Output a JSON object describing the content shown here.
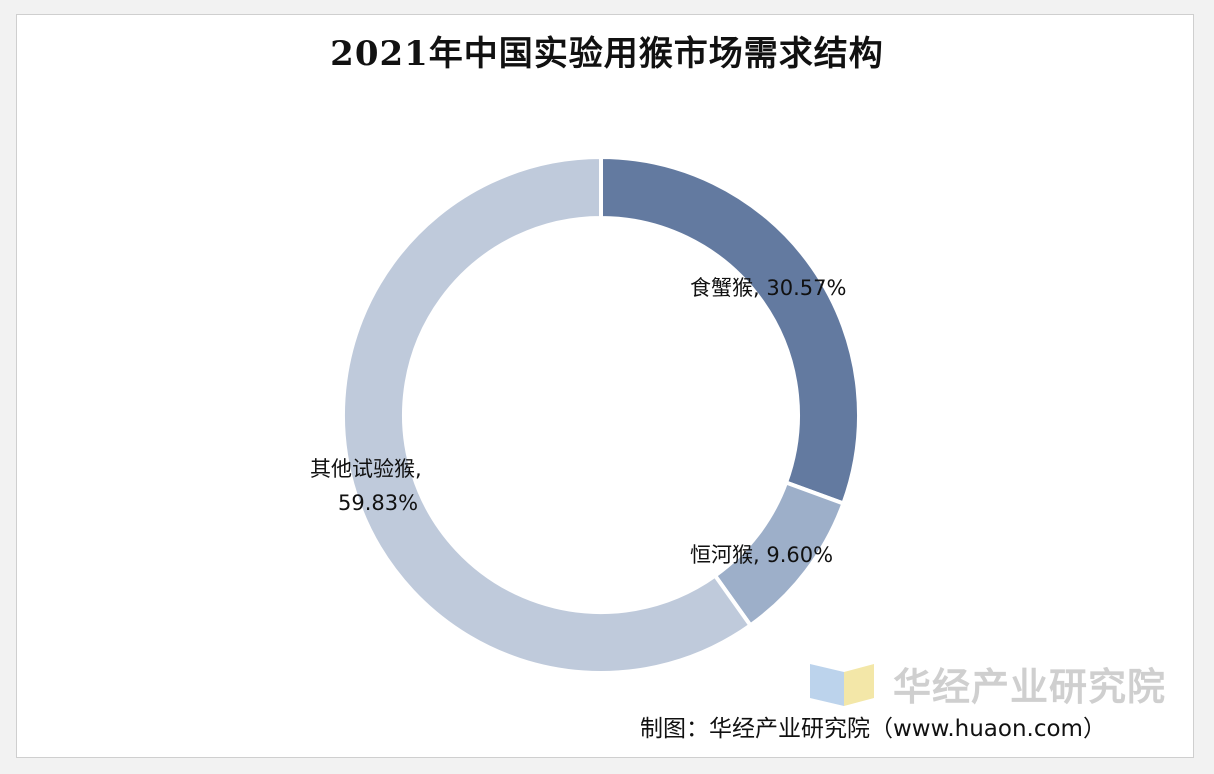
{
  "chart_data": {
    "type": "pie",
    "title": "2021年中国实验用猴市场需求结构",
    "donut": true,
    "start_angle_deg": 0,
    "direction": "clockwise",
    "slices": [
      {
        "name": "食蟹猴",
        "value": 30.57,
        "label_line1": "食蟹猴, 30.57%",
        "label_line2": "",
        "color": "#637aa0"
      },
      {
        "name": "恒河猴",
        "value": 9.6,
        "label_line1": "恒河猴, 9.60%",
        "label_line2": "",
        "color": "#9dafc9"
      },
      {
        "name": "其他试验猴",
        "value": 59.83,
        "label_line1": "其他试验猴,",
        "label_line2": "59.83%",
        "color": "#bfcadb"
      }
    ]
  },
  "watermark": {
    "text": "华经产业研究院",
    "text_color": "#c7c7c7",
    "logo_colors": [
      "#bcd3ec",
      "#f3e7a8"
    ]
  },
  "source_text": "制图：华经产业研究院（www.huaon.com）"
}
